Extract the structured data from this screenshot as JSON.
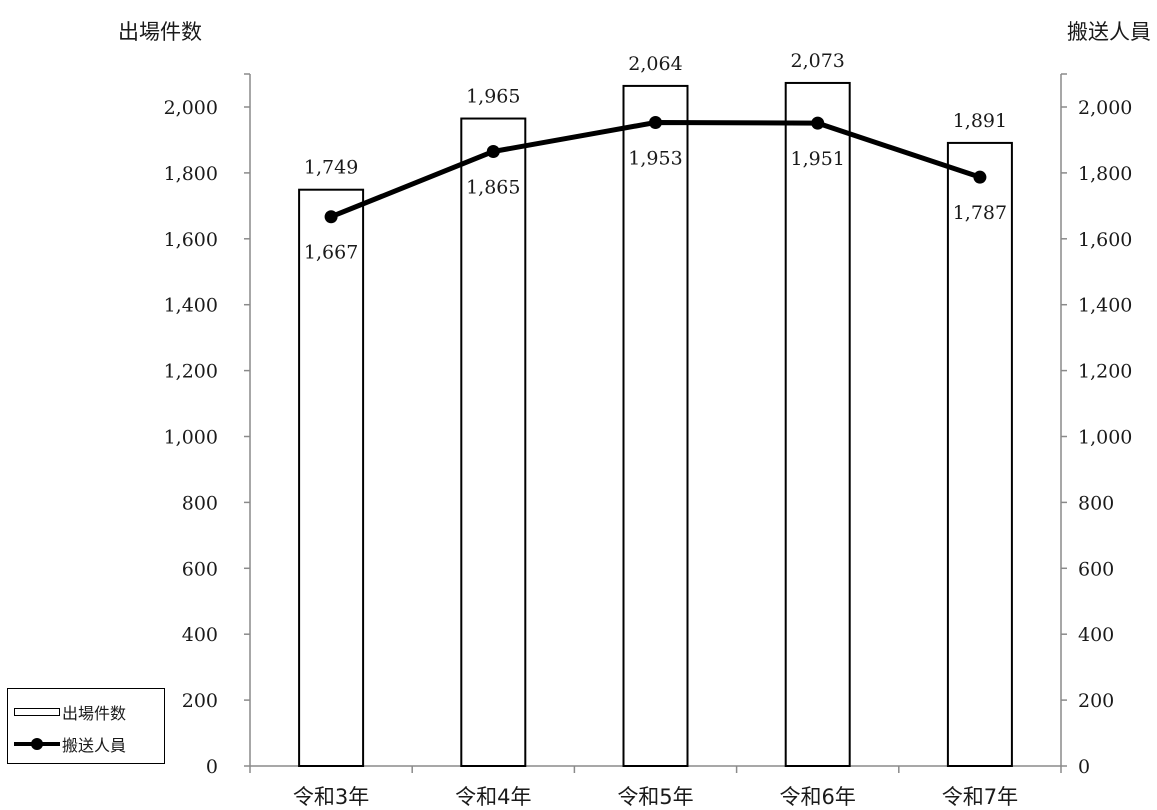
{
  "chart_data": {
    "type": "bar+line",
    "categories": [
      "令和3年",
      "令和4年",
      "令和5年",
      "令和6年",
      "令和7年"
    ],
    "series": [
      {
        "name": "出場件数",
        "type": "bar",
        "axis": "left",
        "values": [
          1749,
          1965,
          2064,
          2073,
          1891
        ]
      },
      {
        "name": "搬送人員",
        "type": "line",
        "axis": "right",
        "values": [
          1667,
          1865,
          1953,
          1951,
          1787
        ]
      }
    ],
    "y_left": {
      "label": "出場件数",
      "min": 0,
      "max": 2000,
      "step": 200,
      "ticks": [
        "0",
        "200",
        "400",
        "600",
        "800",
        "1,000",
        "1,200",
        "1,400",
        "1,600",
        "1,800",
        "2,000"
      ]
    },
    "y_right": {
      "label": "搬送人員",
      "min": 0,
      "max": 2000,
      "step": 200,
      "ticks": [
        "0",
        "200",
        "400",
        "600",
        "800",
        "1,000",
        "1,200",
        "1,400",
        "1,600",
        "1,800",
        "2,000"
      ]
    },
    "bar_labels": [
      "1,749",
      "1,965",
      "2,064",
      "2,073",
      "1,891"
    ],
    "line_labels": [
      "1,667",
      "1,865",
      "1,953",
      "1,951",
      "1,787"
    ],
    "legend_position": "bottom-left",
    "grid": false
  },
  "legend": {
    "bar_label": "出場件数",
    "line_label": "搬送人員"
  }
}
